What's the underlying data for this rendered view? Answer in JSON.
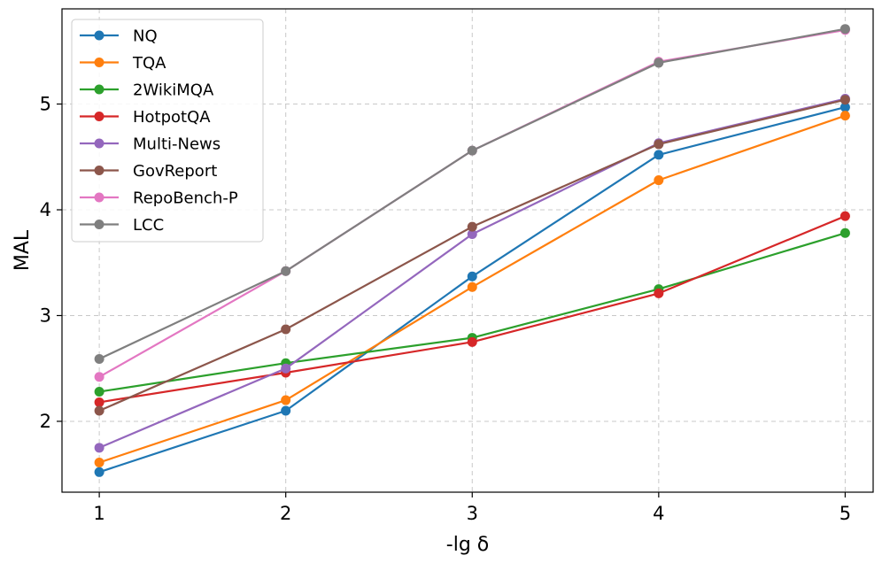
{
  "chart_data": {
    "type": "line",
    "title": "",
    "xlabel": "-lg δ",
    "ylabel": "MAL",
    "x": [
      1,
      2,
      3,
      4,
      5
    ],
    "xlim": [
      0.8,
      5.15
    ],
    "ylim": [
      1.33,
      5.9
    ],
    "xticks": [
      "1",
      "2",
      "3",
      "4",
      "5"
    ],
    "yticks": [
      "2",
      "3",
      "4",
      "5"
    ],
    "grid": true,
    "legend_position": "top-left",
    "series": [
      {
        "name": "NQ",
        "color": "#1f77b4",
        "values": [
          1.52,
          2.1,
          3.37,
          4.52,
          4.97
        ]
      },
      {
        "name": "TQA",
        "color": "#ff7f0e",
        "values": [
          1.61,
          2.2,
          3.27,
          4.28,
          4.89
        ]
      },
      {
        "name": "2WikiMQA",
        "color": "#2ca02c",
        "values": [
          2.28,
          2.55,
          2.79,
          3.25,
          3.78
        ]
      },
      {
        "name": "HotpotQA",
        "color": "#d62728",
        "values": [
          2.18,
          2.46,
          2.75,
          3.21,
          3.94
        ]
      },
      {
        "name": "Multi-News",
        "color": "#9467bd",
        "values": [
          1.75,
          2.5,
          3.77,
          4.63,
          5.05
        ]
      },
      {
        "name": "GovReport",
        "color": "#8c564b",
        "values": [
          2.1,
          2.87,
          3.84,
          4.62,
          5.04
        ]
      },
      {
        "name": "RepoBench-P",
        "color": "#e377c2",
        "values": [
          2.42,
          3.42,
          4.56,
          5.4,
          5.7
        ]
      },
      {
        "name": "LCC",
        "color": "#7f7f7f",
        "values": [
          2.59,
          3.42,
          4.56,
          5.39,
          5.71
        ]
      }
    ]
  }
}
